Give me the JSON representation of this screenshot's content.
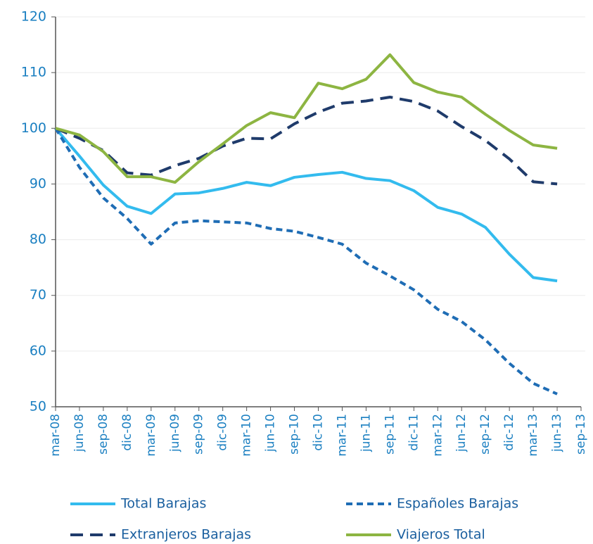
{
  "chart_data": {
    "type": "line",
    "categories": [
      "mar-08",
      "jun-08",
      "sep-08",
      "dic-08",
      "mar-09",
      "jun-09",
      "sep-09",
      "dic-09",
      "mar-10",
      "jun-10",
      "sep-10",
      "dic-10",
      "mar-11",
      "jun-11",
      "sep-11",
      "dic-11",
      "mar-12",
      "jun-12",
      "sep-12",
      "dic-12",
      "mar-13",
      "jun-13",
      "sep-13"
    ],
    "series": [
      {
        "name": "Total Barajas",
        "color": "#33bbee",
        "dash": "solid",
        "values": [
          100,
          95,
          89.8,
          86,
          84.7,
          88.2,
          88.4,
          89.2,
          90.3,
          89.7,
          91.2,
          91.7,
          92.1,
          91,
          90.6,
          88.8,
          85.8,
          84.6,
          82.2,
          77.4,
          73.2,
          72.6,
          null
        ]
      },
      {
        "name": "Españoles Barajas",
        "color": "#1f6db5",
        "dash": "short",
        "values": [
          100,
          93,
          87.5,
          83.8,
          79.2,
          83,
          83.4,
          83.2,
          83,
          82,
          81.5,
          80.4,
          79.2,
          75.8,
          73.5,
          71,
          67.5,
          65.3,
          62,
          57.8,
          54.2,
          52.3,
          null
        ]
      },
      {
        "name": "Extranjeros Barajas",
        "color": "#1f3b6b",
        "dash": "long",
        "values": [
          100,
          98.2,
          96,
          92,
          91.6,
          93.3,
          94.6,
          96.8,
          98.2,
          98.1,
          100.8,
          102.9,
          104.5,
          104.9,
          105.6,
          104.8,
          103.1,
          100.3,
          97.8,
          94.5,
          90.4,
          90,
          null
        ]
      },
      {
        "name": "Viajeros Total",
        "color": "#8db542",
        "dash": "solid",
        "values": [
          100,
          98.8,
          95.8,
          91.3,
          91.3,
          90.3,
          94,
          97.2,
          100.5,
          102.8,
          101.9,
          108.1,
          107.1,
          108.8,
          113.2,
          108.2,
          106.5,
          105.6,
          102.5,
          99.6,
          97,
          96.4,
          null
        ]
      }
    ],
    "ylim": [
      50,
      120
    ],
    "yticks": [
      50,
      60,
      70,
      80,
      90,
      100,
      110,
      120
    ],
    "grid": true,
    "legend": "bottom"
  }
}
